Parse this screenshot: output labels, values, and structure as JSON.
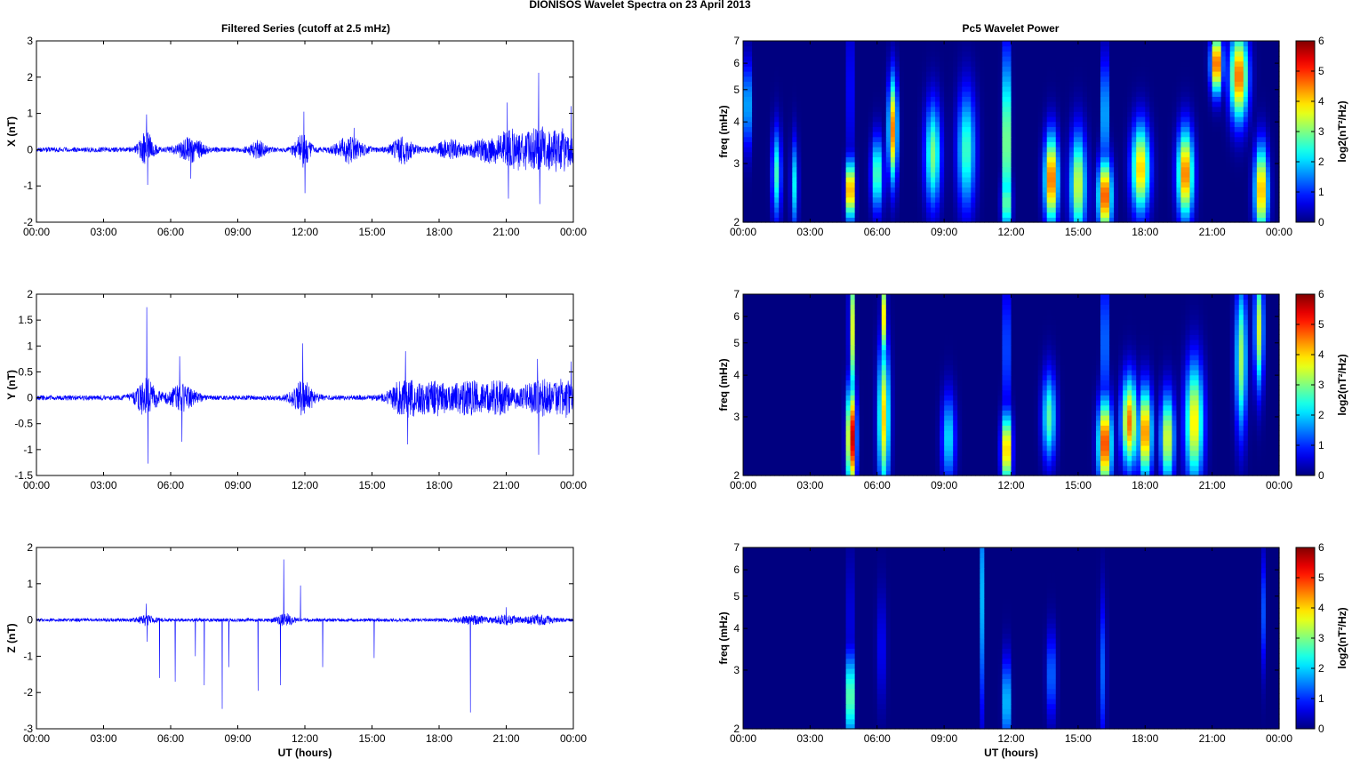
{
  "figure": {
    "suptitle": "DIONISOS Wavelet Spectra on 23 April     2013",
    "left_title": "Filtered Series (cutoff at 2.5 mHz)",
    "right_title": "Pc5 Wavelet Power",
    "xlabel": "UT (hours)"
  },
  "chart_data": [
    {
      "type": "line",
      "component": "X",
      "title": "Filtered Series (cutoff at 2.5 mHz)",
      "ylabel": "X (nT)",
      "xlabel": "",
      "x_ticks": [
        "00:00",
        "03:00",
        "06:00",
        "09:00",
        "12:00",
        "15:00",
        "18:00",
        "21:00",
        "00:00"
      ],
      "x_range_hours": [
        0,
        24
      ],
      "ylim": [
        -2,
        3
      ],
      "y_ticks": [
        "-2",
        "-1",
        "0",
        "1",
        "2",
        "3"
      ],
      "color": "#0000ff",
      "noise_amplitude": 0.07,
      "bursts": [
        {
          "t": 4.9,
          "amp": 0.45,
          "w": 0.35
        },
        {
          "t": 6.9,
          "amp": 0.3,
          "w": 0.6
        },
        {
          "t": 9.9,
          "amp": 0.2,
          "w": 0.4
        },
        {
          "t": 11.9,
          "amp": 0.45,
          "w": 0.35
        },
        {
          "t": 14.0,
          "amp": 0.35,
          "w": 0.6
        },
        {
          "t": 16.4,
          "amp": 0.35,
          "w": 0.5
        },
        {
          "t": 18.5,
          "amp": 0.25,
          "w": 0.6
        },
        {
          "t": 20.0,
          "amp": 0.3,
          "w": 0.6
        },
        {
          "t": 21.2,
          "amp": 0.5,
          "w": 0.7
        },
        {
          "t": 22.5,
          "amp": 0.55,
          "w": 0.8
        },
        {
          "t": 23.6,
          "amp": 0.45,
          "w": 0.6
        }
      ],
      "spikes": [
        {
          "t": 4.92,
          "v": 0.97
        },
        {
          "t": 4.97,
          "v": -0.97
        },
        {
          "t": 6.9,
          "v": -0.8
        },
        {
          "t": 11.95,
          "v": 1.05
        },
        {
          "t": 12.0,
          "v": -1.2
        },
        {
          "t": 14.2,
          "v": 0.6
        },
        {
          "t": 21.05,
          "v": 1.3
        },
        {
          "t": 21.1,
          "v": -1.35
        },
        {
          "t": 22.45,
          "v": 2.12
        },
        {
          "t": 22.5,
          "v": -1.5
        },
        {
          "t": 23.9,
          "v": 1.2
        }
      ]
    },
    {
      "type": "line",
      "component": "Y",
      "ylabel": "Y (nT)",
      "xlabel": "",
      "x_ticks": [
        "00:00",
        "03:00",
        "06:00",
        "09:00",
        "12:00",
        "15:00",
        "18:00",
        "21:00",
        "00:00"
      ],
      "x_range_hours": [
        0,
        24
      ],
      "ylim": [
        -1.5,
        2
      ],
      "y_ticks": [
        "-1.5",
        "-1",
        "-0.5",
        "0",
        "0.5",
        "1",
        "1.5",
        "2"
      ],
      "color": "#0000ff",
      "noise_amplitude": 0.05,
      "bursts": [
        {
          "t": 4.9,
          "amp": 0.35,
          "w": 0.5
        },
        {
          "t": 6.5,
          "amp": 0.25,
          "w": 0.6
        },
        {
          "t": 11.9,
          "amp": 0.3,
          "w": 0.5
        },
        {
          "t": 16.5,
          "amp": 0.35,
          "w": 0.7
        },
        {
          "t": 17.8,
          "amp": 0.3,
          "w": 0.7
        },
        {
          "t": 19.3,
          "amp": 0.3,
          "w": 0.8
        },
        {
          "t": 20.7,
          "amp": 0.3,
          "w": 0.7
        },
        {
          "t": 22.5,
          "amp": 0.35,
          "w": 0.8
        },
        {
          "t": 23.7,
          "amp": 0.3,
          "w": 0.5
        }
      ],
      "spikes": [
        {
          "t": 4.93,
          "v": 1.75
        },
        {
          "t": 4.98,
          "v": -1.27
        },
        {
          "t": 6.4,
          "v": 0.8
        },
        {
          "t": 6.5,
          "v": -0.85
        },
        {
          "t": 11.9,
          "v": 1.05
        },
        {
          "t": 16.5,
          "v": 0.9
        },
        {
          "t": 16.6,
          "v": -0.9
        },
        {
          "t": 22.4,
          "v": 0.75
        },
        {
          "t": 22.45,
          "v": -1.1
        },
        {
          "t": 23.9,
          "v": 0.7
        }
      ]
    },
    {
      "type": "line",
      "component": "Z",
      "ylabel": "Z (nT)",
      "xlabel": "UT (hours)",
      "x_ticks": [
        "00:00",
        "03:00",
        "06:00",
        "09:00",
        "12:00",
        "15:00",
        "18:00",
        "21:00",
        "00:00"
      ],
      "x_range_hours": [
        0,
        24
      ],
      "ylim": [
        -3,
        2
      ],
      "y_ticks": [
        "-3",
        "-2",
        "-1",
        "0",
        "1",
        "2"
      ],
      "color": "#0000ff",
      "noise_amplitude": 0.05,
      "bursts": [
        {
          "t": 4.9,
          "amp": 0.12,
          "w": 0.4
        },
        {
          "t": 11.1,
          "amp": 0.15,
          "w": 0.4
        },
        {
          "t": 19.5,
          "amp": 0.1,
          "w": 0.6
        },
        {
          "t": 21.0,
          "amp": 0.1,
          "w": 0.6
        },
        {
          "t": 22.5,
          "amp": 0.12,
          "w": 0.6
        }
      ],
      "spikes": [
        {
          "t": 4.9,
          "v": 0.45
        },
        {
          "t": 4.95,
          "v": -0.6
        },
        {
          "t": 5.5,
          "v": -1.6
        },
        {
          "t": 6.2,
          "v": -1.7
        },
        {
          "t": 7.1,
          "v": -1.0
        },
        {
          "t": 7.5,
          "v": -1.8
        },
        {
          "t": 8.3,
          "v": -2.45
        },
        {
          "t": 8.6,
          "v": -1.3
        },
        {
          "t": 9.9,
          "v": -1.95
        },
        {
          "t": 11.05,
          "v": 1.67
        },
        {
          "t": 10.9,
          "v": -1.8
        },
        {
          "t": 11.8,
          "v": 0.95
        },
        {
          "t": 12.8,
          "v": -1.3
        },
        {
          "t": 15.1,
          "v": -1.05
        },
        {
          "t": 19.4,
          "v": -2.55
        },
        {
          "t": 21.0,
          "v": 0.35
        }
      ]
    },
    {
      "type": "heatmap",
      "component": "X",
      "title": "Pc5 Wavelet Power",
      "ylabel": "freq (mHz)",
      "yscale": "log",
      "ylim": [
        2,
        7
      ],
      "y_ticks": [
        "2",
        "3",
        "4",
        "5",
        "6",
        "7"
      ],
      "x_ticks": [
        "00:00",
        "03:00",
        "06:00",
        "09:00",
        "12:00",
        "15:00",
        "18:00",
        "21:00",
        "00:00"
      ],
      "x_range_hours": [
        0,
        24
      ],
      "colormap": "jet",
      "color_range": [
        0,
        6
      ],
      "colorbar_label": "log2(nT²/Hz)",
      "colorbar_ticks": [
        "0",
        "1",
        "2",
        "3",
        "4",
        "5",
        "6"
      ],
      "blobs": [
        {
          "t": 4.8,
          "f": 2.5,
          "p": 5.6,
          "w": 0.18,
          "h": 0.2
        },
        {
          "t": 4.8,
          "f": 5.0,
          "p": 3.2,
          "w": 0.08,
          "h": 0.6
        },
        {
          "t": 6.7,
          "f": 3.8,
          "p": 4.5,
          "w": 0.2,
          "h": 0.35
        },
        {
          "t": 6.0,
          "f": 2.8,
          "p": 3.0,
          "w": 0.25,
          "h": 0.25
        },
        {
          "t": 11.8,
          "f": 3.5,
          "p": 4.5,
          "w": 0.15,
          "h": 0.6
        },
        {
          "t": 11.8,
          "f": 2.3,
          "p": 3.5,
          "w": 0.2,
          "h": 0.2
        },
        {
          "t": 13.8,
          "f": 2.7,
          "p": 5.0,
          "w": 0.3,
          "h": 0.3
        },
        {
          "t": 16.2,
          "f": 2.4,
          "p": 5.2,
          "w": 0.3,
          "h": 0.25
        },
        {
          "t": 16.2,
          "f": 4.2,
          "p": 3.3,
          "w": 0.12,
          "h": 0.4
        },
        {
          "t": 17.8,
          "f": 2.9,
          "p": 4.2,
          "w": 0.4,
          "h": 0.3
        },
        {
          "t": 19.8,
          "f": 2.8,
          "p": 4.8,
          "w": 0.35,
          "h": 0.3
        },
        {
          "t": 21.2,
          "f": 6.0,
          "p": 5.3,
          "w": 0.25,
          "h": 0.2
        },
        {
          "t": 22.2,
          "f": 5.5,
          "p": 4.8,
          "w": 0.4,
          "h": 0.3
        },
        {
          "t": 23.2,
          "f": 2.5,
          "p": 4.5,
          "w": 0.3,
          "h": 0.3
        },
        {
          "t": 1.5,
          "f": 2.8,
          "p": 2.6,
          "w": 0.2,
          "h": 0.3
        },
        {
          "t": 2.3,
          "f": 2.6,
          "p": 2.2,
          "w": 0.15,
          "h": 0.3
        },
        {
          "t": 8.5,
          "f": 3.2,
          "p": 3.0,
          "w": 0.35,
          "h": 0.35
        },
        {
          "t": 10.0,
          "f": 3.3,
          "p": 2.7,
          "w": 0.4,
          "h": 0.4
        },
        {
          "t": 0.2,
          "f": 4.5,
          "p": 2.6,
          "w": 0.15,
          "h": 0.3
        },
        {
          "t": 15.0,
          "f": 2.6,
          "p": 3.6,
          "w": 0.35,
          "h": 0.35
        }
      ]
    },
    {
      "type": "heatmap",
      "component": "Y",
      "ylabel": "freq (mHz)",
      "yscale": "log",
      "ylim": [
        2,
        7
      ],
      "y_ticks": [
        "2",
        "3",
        "4",
        "5",
        "6",
        "7"
      ],
      "x_ticks": [
        "00:00",
        "03:00",
        "06:00",
        "09:00",
        "12:00",
        "15:00",
        "18:00",
        "21:00",
        "00:00"
      ],
      "x_range_hours": [
        0,
        24
      ],
      "colormap": "jet",
      "color_range": [
        0,
        6
      ],
      "colorbar_label": "log2(nT²/Hz)",
      "colorbar_ticks": [
        "0",
        "1",
        "2",
        "3",
        "4",
        "5",
        "6"
      ],
      "blobs": [
        {
          "t": 4.85,
          "f": 2.6,
          "p": 5.9,
          "w": 0.2,
          "h": 0.35
        },
        {
          "t": 4.85,
          "f": 5.5,
          "p": 4.5,
          "w": 0.1,
          "h": 0.5
        },
        {
          "t": 6.3,
          "f": 3.0,
          "p": 4.0,
          "w": 0.25,
          "h": 0.5
        },
        {
          "t": 6.3,
          "f": 6.0,
          "p": 3.8,
          "w": 0.12,
          "h": 0.3
        },
        {
          "t": 11.8,
          "f": 2.4,
          "p": 4.8,
          "w": 0.22,
          "h": 0.25
        },
        {
          "t": 11.8,
          "f": 4.8,
          "p": 3.0,
          "w": 0.1,
          "h": 0.5
        },
        {
          "t": 16.2,
          "f": 2.5,
          "p": 5.3,
          "w": 0.3,
          "h": 0.3
        },
        {
          "t": 16.2,
          "f": 5.0,
          "p": 3.5,
          "w": 0.1,
          "h": 0.5
        },
        {
          "t": 17.3,
          "f": 2.9,
          "p": 4.6,
          "w": 0.35,
          "h": 0.3
        },
        {
          "t": 18.0,
          "f": 2.7,
          "p": 4.8,
          "w": 0.3,
          "h": 0.3
        },
        {
          "t": 19.0,
          "f": 2.6,
          "p": 3.8,
          "w": 0.3,
          "h": 0.3
        },
        {
          "t": 20.2,
          "f": 2.9,
          "p": 4.0,
          "w": 0.4,
          "h": 0.4
        },
        {
          "t": 22.3,
          "f": 4.5,
          "p": 3.2,
          "w": 0.25,
          "h": 0.5
        },
        {
          "t": 23.1,
          "f": 5.5,
          "p": 3.5,
          "w": 0.2,
          "h": 0.4
        },
        {
          "t": 13.7,
          "f": 3.0,
          "p": 2.8,
          "w": 0.3,
          "h": 0.3
        },
        {
          "t": 9.2,
          "f": 2.6,
          "p": 2.2,
          "w": 0.3,
          "h": 0.3
        }
      ]
    },
    {
      "type": "heatmap",
      "component": "Z",
      "ylabel": "freq (mHz)",
      "xlabel": "UT (hours)",
      "yscale": "log",
      "ylim": [
        2,
        7
      ],
      "y_ticks": [
        "2",
        "3",
        "4",
        "5",
        "6",
        "7"
      ],
      "x_ticks": [
        "00:00",
        "03:00",
        "06:00",
        "09:00",
        "12:00",
        "15:00",
        "18:00",
        "21:00",
        "00:00"
      ],
      "x_range_hours": [
        0,
        24
      ],
      "colormap": "jet",
      "color_range": [
        0,
        6
      ],
      "colorbar_label": "log2(nT²/Hz)",
      "colorbar_ticks": [
        "0",
        "1",
        "2",
        "3",
        "4",
        "5",
        "6"
      ],
      "blobs": [
        {
          "t": 4.8,
          "f": 2.5,
          "p": 4.2,
          "w": 0.15,
          "h": 0.3
        },
        {
          "t": 4.8,
          "f": 4.2,
          "p": 2.4,
          "w": 0.08,
          "h": 0.5
        },
        {
          "t": 11.8,
          "f": 2.4,
          "p": 2.8,
          "w": 0.15,
          "h": 0.3
        },
        {
          "t": 10.7,
          "f": 5.0,
          "p": 1.8,
          "w": 0.08,
          "h": 0.8
        },
        {
          "t": 13.8,
          "f": 2.9,
          "p": 1.6,
          "w": 0.2,
          "h": 0.3
        },
        {
          "t": 16.1,
          "f": 3.0,
          "p": 1.3,
          "w": 0.15,
          "h": 0.5
        },
        {
          "t": 23.3,
          "f": 4.5,
          "p": 1.2,
          "w": 0.1,
          "h": 0.4
        },
        {
          "t": 6.2,
          "f": 3.5,
          "p": 0.8,
          "w": 0.2,
          "h": 0.4
        }
      ]
    }
  ]
}
